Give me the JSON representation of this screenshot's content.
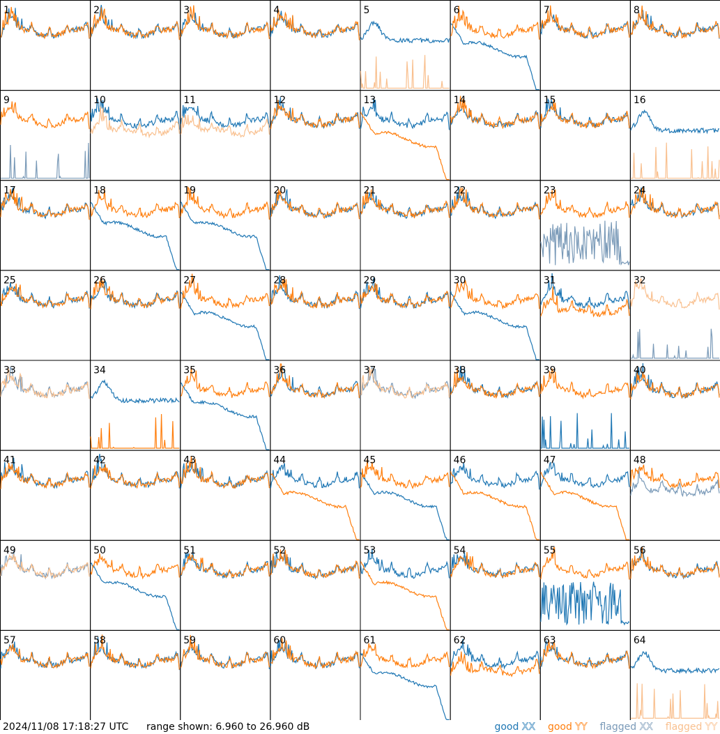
{
  "footer": {
    "timestamp": "2024/11/08 17:18:27 UTC",
    "range": "range shown: 6.960 to 26.960 dB"
  },
  "legend": [
    {
      "key": "good_xx",
      "prefix": "good ",
      "pol": "XX",
      "color": "#1f77b4"
    },
    {
      "key": "good_yy",
      "prefix": "good ",
      "pol": "YY",
      "color": "#ff7f0e"
    },
    {
      "key": "flagged_xx",
      "prefix": "flagged ",
      "pol": "XX",
      "color": "#7a9ab8"
    },
    {
      "key": "flagged_yy",
      "prefix": "flagged ",
      "pol": "YY",
      "color": "#f9c08f"
    }
  ],
  "chart_data": {
    "type": "line",
    "panel_layout": "8x8 grid of small multiples",
    "y_range_db": [
      6.96,
      26.96
    ],
    "x_axis": "frequency channel (unlabeled)",
    "series_legend": [
      "good XX",
      "good YY",
      "flagged XX",
      "flagged YY"
    ],
    "colors": {
      "good_xx": "#1f77b4",
      "good_yy": "#ff7f0e",
      "flagged_xx": "#7a9ab8",
      "flagged_yy": "#f9c08f"
    },
    "tiles": [
      {
        "label": "1",
        "xx": "normal",
        "yy": "normal"
      },
      {
        "label": "2",
        "xx": "normal",
        "yy": "normal"
      },
      {
        "label": "3",
        "xx": "normal",
        "yy": "normal"
      },
      {
        "label": "4",
        "xx": "normal",
        "yy": "normal"
      },
      {
        "label": "5",
        "xx": "high",
        "yy": "spikes",
        "yy_flagged": true
      },
      {
        "label": "6",
        "xx": "droop",
        "yy": "normal"
      },
      {
        "label": "7",
        "xx": "normal",
        "yy": "normal"
      },
      {
        "label": "8",
        "xx": "normal",
        "yy": "normal"
      },
      {
        "label": "9",
        "xx": "spikes",
        "yy": "normal",
        "xx_flagged": true
      },
      {
        "label": "10",
        "xx": "normal",
        "yy": "low",
        "yy_flagged": true
      },
      {
        "label": "11",
        "xx": "normal",
        "yy": "low",
        "yy_flagged": true
      },
      {
        "label": "12",
        "xx": "normal",
        "yy": "normal"
      },
      {
        "label": "13",
        "xx": "normal",
        "yy": "droop"
      },
      {
        "label": "14",
        "xx": "normal",
        "yy": "normal"
      },
      {
        "label": "15",
        "xx": "normal",
        "yy": "normal"
      },
      {
        "label": "16",
        "xx": "high",
        "yy": "spikes",
        "yy_flagged": true
      },
      {
        "label": "17",
        "xx": "normal",
        "yy": "normal"
      },
      {
        "label": "18",
        "xx": "droop",
        "yy": "normal"
      },
      {
        "label": "19",
        "xx": "droop",
        "yy": "normal"
      },
      {
        "label": "20",
        "xx": "normal",
        "yy": "normal"
      },
      {
        "label": "21",
        "xx": "normal",
        "yy": "normal"
      },
      {
        "label": "22",
        "xx": "normal",
        "yy": "normal"
      },
      {
        "label": "23",
        "xx": "noise",
        "yy": "normal",
        "xx_flagged": true
      },
      {
        "label": "24",
        "xx": "normal",
        "yy": "normal"
      },
      {
        "label": "25",
        "xx": "normal",
        "yy": "normal"
      },
      {
        "label": "26",
        "xx": "normal",
        "yy": "normal"
      },
      {
        "label": "27",
        "xx": "droop",
        "yy": "normal"
      },
      {
        "label": "28",
        "xx": "normal",
        "yy": "normal"
      },
      {
        "label": "29",
        "xx": "normal",
        "yy": "normal"
      },
      {
        "label": "30",
        "xx": "droop",
        "yy": "normal"
      },
      {
        "label": "31",
        "xx": "normal",
        "yy": "low"
      },
      {
        "label": "32",
        "xx": "spikes",
        "yy": "normal",
        "xx_flagged": true,
        "yy_flagged": true
      },
      {
        "label": "33",
        "xx": "normal",
        "yy": "normal",
        "xx_flagged": true,
        "yy_flagged": true
      },
      {
        "label": "34",
        "xx": "high",
        "yy": "spikes"
      },
      {
        "label": "35",
        "xx": "droop",
        "yy": "normal"
      },
      {
        "label": "36",
        "xx": "normal",
        "yy": "normal"
      },
      {
        "label": "37",
        "xx": "normal",
        "yy": "normal",
        "xx_flagged": true,
        "yy_flagged": true
      },
      {
        "label": "38",
        "xx": "normal",
        "yy": "normal"
      },
      {
        "label": "39",
        "xx": "spikes",
        "yy": "normal"
      },
      {
        "label": "40",
        "xx": "normal",
        "yy": "normal"
      },
      {
        "label": "41",
        "xx": "normal",
        "yy": "normal"
      },
      {
        "label": "42",
        "xx": "normal",
        "yy": "normal"
      },
      {
        "label": "43",
        "xx": "normal",
        "yy": "normal"
      },
      {
        "label": "44",
        "xx": "normal",
        "yy": "droop"
      },
      {
        "label": "45",
        "xx": "droop",
        "yy": "normal"
      },
      {
        "label": "46",
        "xx": "normal",
        "yy": "droop"
      },
      {
        "label": "47",
        "xx": "normal",
        "yy": "droop"
      },
      {
        "label": "48",
        "xx": "low",
        "yy": "normal",
        "xx_flagged": true
      },
      {
        "label": "49",
        "xx": "normal",
        "yy": "normal",
        "xx_flagged": true,
        "yy_flagged": true
      },
      {
        "label": "50",
        "xx": "droop",
        "yy": "normal"
      },
      {
        "label": "51",
        "xx": "normal",
        "yy": "normal"
      },
      {
        "label": "52",
        "xx": "normal",
        "yy": "normal"
      },
      {
        "label": "53",
        "xx": "normal",
        "yy": "droop"
      },
      {
        "label": "54",
        "xx": "normal",
        "yy": "normal"
      },
      {
        "label": "55",
        "xx": "noise",
        "yy": "normal"
      },
      {
        "label": "56",
        "xx": "normal",
        "yy": "normal"
      },
      {
        "label": "57",
        "xx": "normal",
        "yy": "normal"
      },
      {
        "label": "58",
        "xx": "normal",
        "yy": "normal"
      },
      {
        "label": "59",
        "xx": "normal",
        "yy": "normal"
      },
      {
        "label": "60",
        "xx": "normal",
        "yy": "normal"
      },
      {
        "label": "61",
        "xx": "droop",
        "yy": "normal"
      },
      {
        "label": "62",
        "xx": "normal",
        "yy": "low"
      },
      {
        "label": "63",
        "xx": "normal",
        "yy": "normal"
      },
      {
        "label": "64",
        "xx": "high",
        "yy": "spikes",
        "yy_flagged": true
      }
    ]
  }
}
